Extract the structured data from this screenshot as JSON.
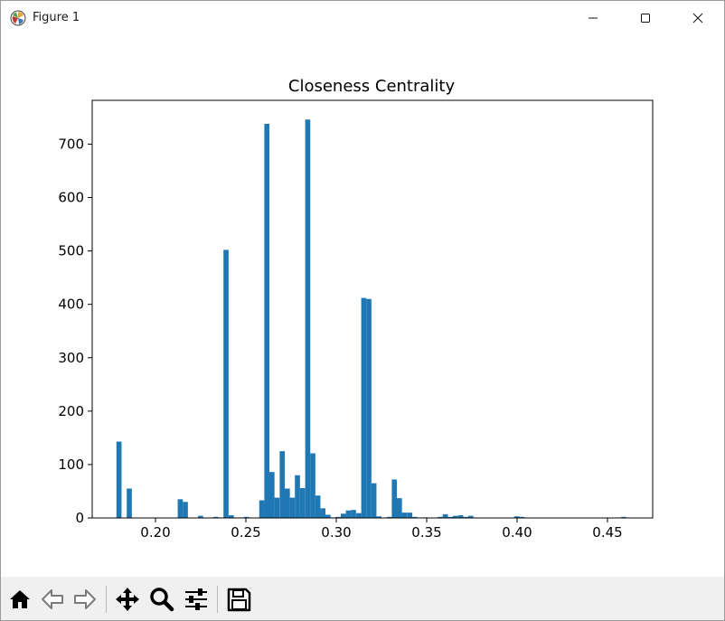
{
  "window": {
    "title": "Figure 1",
    "icons": [
      "figure-app-icon",
      "minimize-icon",
      "maximize-icon",
      "close-icon"
    ]
  },
  "toolbar": {
    "buttons": [
      "home-icon",
      "back-icon",
      "forward-icon",
      "pan-icon",
      "zoom-icon",
      "configure-subplots-icon",
      "save-icon"
    ]
  },
  "colors": {
    "bar": "#1f77b4",
    "axes": "#000000",
    "toolbar_bg": "#f0f0f0"
  },
  "chart_data": {
    "type": "bar",
    "title": "Closeness Centrality",
    "xlabel": "",
    "ylabel": "",
    "xlim": [
      0.165,
      0.475
    ],
    "ylim": [
      0,
      782
    ],
    "xticks": [
      "0.20",
      "0.25",
      "0.30",
      "0.35",
      "0.40",
      "0.45"
    ],
    "yticks": [
      "0",
      "100",
      "200",
      "300",
      "400",
      "500",
      "600",
      "700"
    ],
    "grid": false,
    "bin_width": 0.00282,
    "bin_starts": [
      0.1784,
      0.1812,
      0.1841,
      0.1869,
      0.1897,
      0.1925,
      0.1953,
      0.1982,
      0.201,
      0.2038,
      0.2066,
      0.2094,
      0.2123,
      0.2151,
      0.2179,
      0.2207,
      0.2235,
      0.2264,
      0.2292,
      0.232,
      0.2348,
      0.2376,
      0.2405,
      0.2433,
      0.2461,
      0.2489,
      0.2517,
      0.2546,
      0.2574,
      0.2602,
      0.263,
      0.2658,
      0.2687,
      0.2715,
      0.2743,
      0.2771,
      0.2799,
      0.2828,
      0.2856,
      0.2884,
      0.2912,
      0.294,
      0.2969,
      0.2997,
      0.3025,
      0.3053,
      0.3081,
      0.311,
      0.3138,
      0.3166,
      0.3194,
      0.3222,
      0.3251,
      0.3279,
      0.3307,
      0.3335,
      0.3363,
      0.3392,
      0.342,
      0.3448,
      0.3476,
      0.3504,
      0.3533,
      0.3561,
      0.3589,
      0.3617,
      0.3645,
      0.3674,
      0.3702,
      0.373,
      0.3758,
      0.3786,
      0.3815,
      0.3843,
      0.3871,
      0.3899,
      0.3927,
      0.3956,
      0.3984,
      0.4012,
      0.404,
      0.4068,
      0.4097,
      0.4125,
      0.4153,
      0.4181,
      0.4209,
      0.4238,
      0.4266,
      0.4294,
      0.4322,
      0.435,
      0.4379,
      0.4407,
      0.4435,
      0.4463,
      0.4491,
      0.452,
      0.4548,
      0.4576
    ],
    "values": [
      143,
      0,
      55,
      0,
      0,
      0,
      0,
      0,
      0,
      0,
      0,
      0,
      35,
      30,
      0,
      0,
      4,
      0,
      0,
      2,
      0,
      502,
      5,
      0,
      0,
      2,
      0,
      0,
      33,
      738,
      86,
      38,
      125,
      55,
      38,
      80,
      56,
      746,
      121,
      42,
      18,
      6,
      1,
      2,
      8,
      14,
      15,
      9,
      412,
      410,
      65,
      3,
      0,
      2,
      72,
      37,
      10,
      10,
      2,
      0,
      1,
      0,
      0,
      2,
      7,
      2,
      4,
      5,
      2,
      4,
      0,
      0,
      0,
      0,
      0,
      0,
      0,
      0,
      3,
      2,
      0,
      0,
      0,
      0,
      0,
      0,
      0,
      0,
      0,
      0,
      0,
      0,
      0,
      0,
      0,
      0,
      0,
      0,
      0,
      2
    ]
  }
}
